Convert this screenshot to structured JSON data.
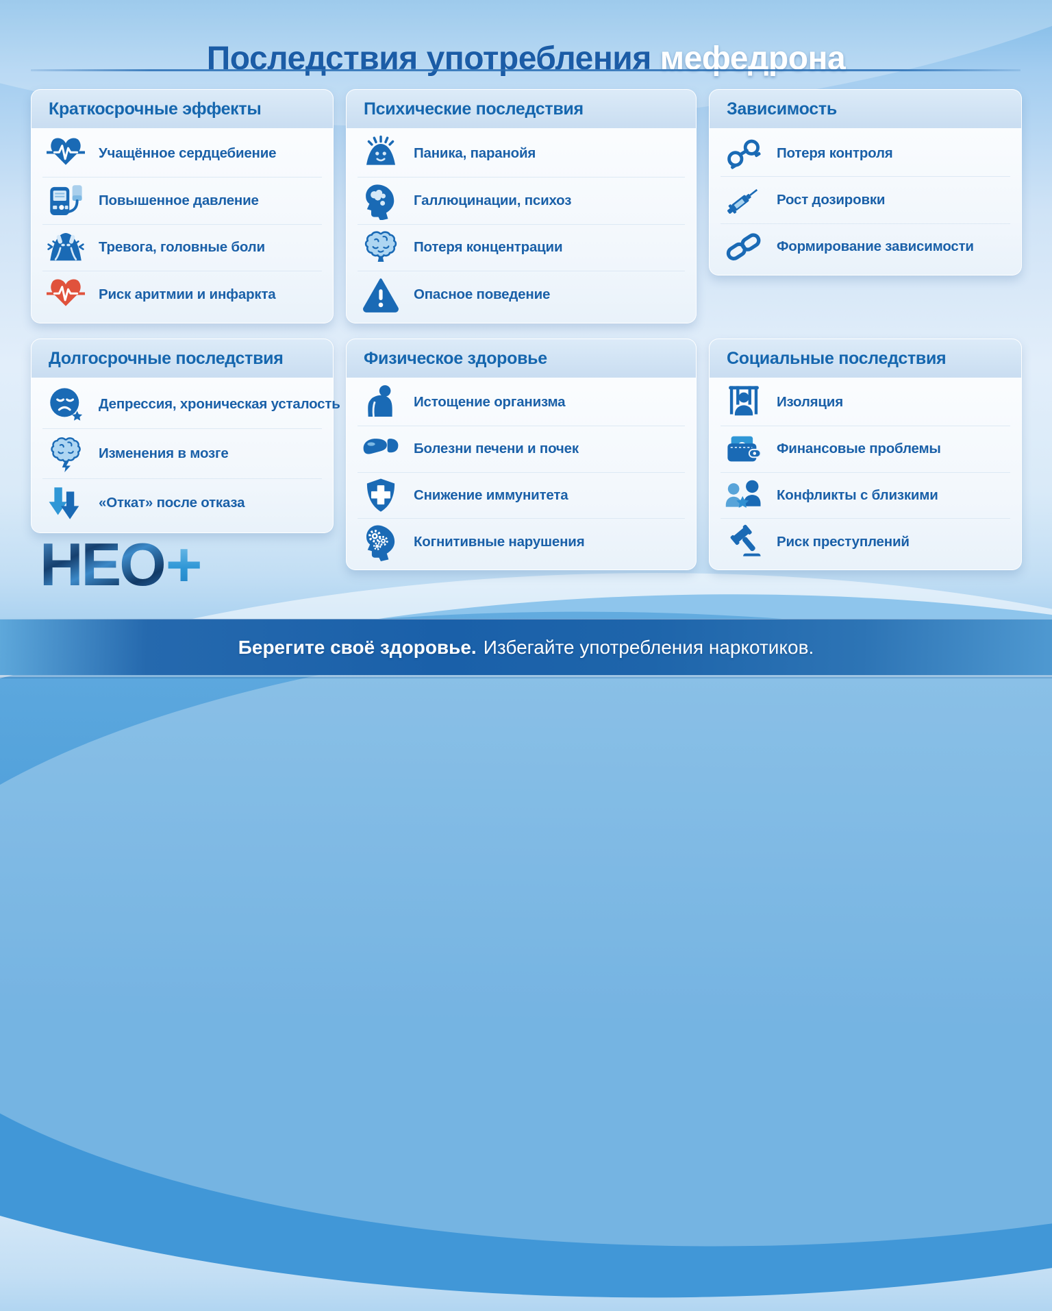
{
  "title": {
    "main": "Последствия употребления",
    "highlight": "мефедрона"
  },
  "cards": [
    {
      "id": "short-term-effects",
      "title": "Краткосрочные эффекты",
      "items": [
        {
          "icon": "heart-pulse-icon",
          "label": "Учащённое сердцебиение"
        },
        {
          "icon": "blood-pressure-icon",
          "label": "Повышенное давление"
        },
        {
          "icon": "anxiety-person-icon",
          "label": "Тревога, головные боли"
        },
        {
          "icon": "heart-attack-icon",
          "label": "Риск аритмии и инфаркта",
          "color": "#e0523c"
        }
      ]
    },
    {
      "id": "mental-consequences",
      "title": "Психические последствия",
      "items": [
        {
          "icon": "panic-person-icon",
          "label": "Паника, паранойя"
        },
        {
          "icon": "hallucination-head-icon",
          "label": "Галлюцинации, психоз"
        },
        {
          "icon": "brain-icon",
          "label": "Потеря концентрации"
        },
        {
          "icon": "warning-triangle-icon",
          "label": "Опасное поведение"
        }
      ]
    },
    {
      "id": "addiction",
      "title": "Зависимость",
      "items": [
        {
          "icon": "handcuffs-icon",
          "label": "Потеря контроля"
        },
        {
          "icon": "syringe-icon",
          "label": "Рост дозировки"
        },
        {
          "icon": "chain-links-icon",
          "label": "Формирование зависимости"
        }
      ]
    },
    {
      "id": "long-term-consequences",
      "title": "Долгосрочные последствия",
      "items": [
        {
          "icon": "depression-face-icon",
          "label": "Депрессия, хроническая усталость"
        },
        {
          "icon": "brain-change-icon",
          "label": "Изменения в мозге"
        },
        {
          "icon": "relapse-arrows-icon",
          "label": "«Откат» после отказа"
        }
      ]
    },
    {
      "id": "physical-health",
      "title": "Физическое здоровье",
      "items": [
        {
          "icon": "exhausted-body-icon",
          "label": "Истощение организма"
        },
        {
          "icon": "liver-kidney-icon",
          "label": "Болезни печени и почек"
        },
        {
          "icon": "immunity-shield-icon",
          "label": "Снижение иммунитета"
        },
        {
          "icon": "cognitive-gears-icon",
          "label": "Когнитивные нарушения"
        }
      ]
    },
    {
      "id": "social-consequences",
      "title": "Социальные последствия",
      "items": [
        {
          "icon": "prison-bars-icon",
          "label": "Изоляция"
        },
        {
          "icon": "wallet-icon",
          "label": "Финансовые проблемы"
        },
        {
          "icon": "people-conflict-icon",
          "label": "Конфликты с близкими"
        },
        {
          "icon": "gavel-icon",
          "label": "Риск преступлений"
        }
      ]
    }
  ],
  "logo": {
    "text": "НЕО",
    "plus": "+"
  },
  "footer": {
    "bold": "Берегите своё здоровье.",
    "regular": "Избегайте употребления наркотиков."
  },
  "colors": {
    "title_blue": "#1b5ca6",
    "icon_blue": "#1a6ab5",
    "alert_red": "#e0523c",
    "text_blue": "#1a60a8",
    "header_band_blue": "#c9ddf1",
    "footer_bar_blue": "#1a60a9",
    "logo_plus_blue": "#2e8fd0"
  }
}
